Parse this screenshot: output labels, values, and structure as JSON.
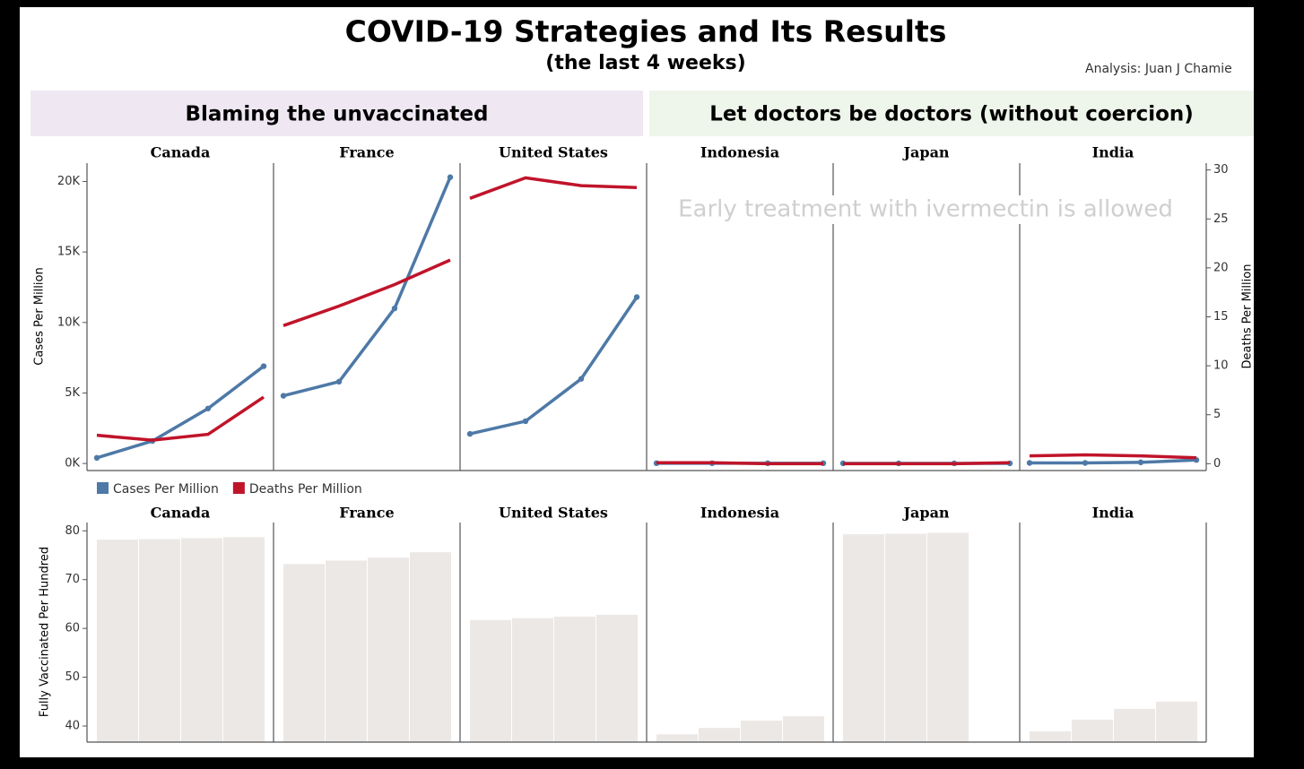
{
  "title": "COVID-19 Strategies and Its Results",
  "subtitle": "(the last 4 weeks)",
  "credit": "Analysis: Juan J Chamie",
  "groups": [
    {
      "label": "Blaming the unvaccinated",
      "color": "#efe8f3"
    },
    {
      "label": "Let doctors be doctors (without coercion)",
      "color": "#eef5ea"
    }
  ],
  "annotation": "Early treatment with ivermectin is allowed",
  "chart_data": [
    {
      "type": "line",
      "panels": [
        "Canada",
        "France",
        "United States",
        "Indonesia",
        "Japan",
        "India"
      ],
      "ylabel": "Cases Per Million",
      "y2label": "Deaths Per Million",
      "ylim": [
        -500,
        21300
      ],
      "yticks": [
        {
          "value": 0,
          "label": "0K"
        },
        {
          "value": 5000,
          "label": "5K"
        },
        {
          "value": 10000,
          "label": "10K"
        },
        {
          "value": 15000,
          "label": "15K"
        },
        {
          "value": 20000,
          "label": "20K"
        }
      ],
      "y2lim": [
        -0.7,
        30.7
      ],
      "y2ticks": [
        0,
        5,
        10,
        15,
        20,
        25,
        30
      ],
      "series": [
        {
          "name": "Cases Per Million",
          "color": "#4e79a7",
          "markers": true,
          "values": [
            [
              400,
              1600,
              3900,
              6900
            ],
            [
              4800,
              5800,
              11000,
              20300
            ],
            [
              2100,
              3000,
              6000,
              11800
            ],
            [
              20,
              20,
              20,
              20
            ],
            [
              10,
              10,
              10,
              10
            ],
            [
              40,
              40,
              80,
              250
            ]
          ]
        },
        {
          "name": "Deaths Per Million",
          "color": "#c0142a",
          "axis": "y2",
          "markers": false,
          "values": [
            [
              2.9,
              2.4,
              3.0,
              6.8
            ],
            [
              14.1,
              16.1,
              18.3,
              20.8
            ],
            [
              27.1,
              29.2,
              28.4,
              28.2
            ],
            [
              0.1,
              0.1,
              0,
              0
            ],
            [
              0,
              0,
              0,
              0.1
            ],
            [
              0.8,
              0.9,
              0.8,
              0.6
            ]
          ]
        }
      ]
    },
    {
      "type": "bar",
      "panels": [
        "Canada",
        "France",
        "United States",
        "Indonesia",
        "Japan",
        "India"
      ],
      "ylabel": "Fully Vaccinated Per Hundred",
      "ylim": [
        36.7,
        81.7
      ],
      "yticks": [
        40,
        50,
        60,
        70,
        80
      ],
      "color": "#ebe8e6",
      "values": [
        [
          78.2,
          78.3,
          78.5,
          78.7
        ],
        [
          73.2,
          73.9,
          74.5,
          75.6
        ],
        [
          61.7,
          62.1,
          62.4,
          62.8
        ],
        [
          38.3,
          39.6,
          41.1,
          42.0
        ],
        [
          79.3,
          79.4,
          79.6,
          null
        ],
        [
          38.9,
          41.3,
          43.5,
          45.0
        ]
      ]
    }
  ]
}
